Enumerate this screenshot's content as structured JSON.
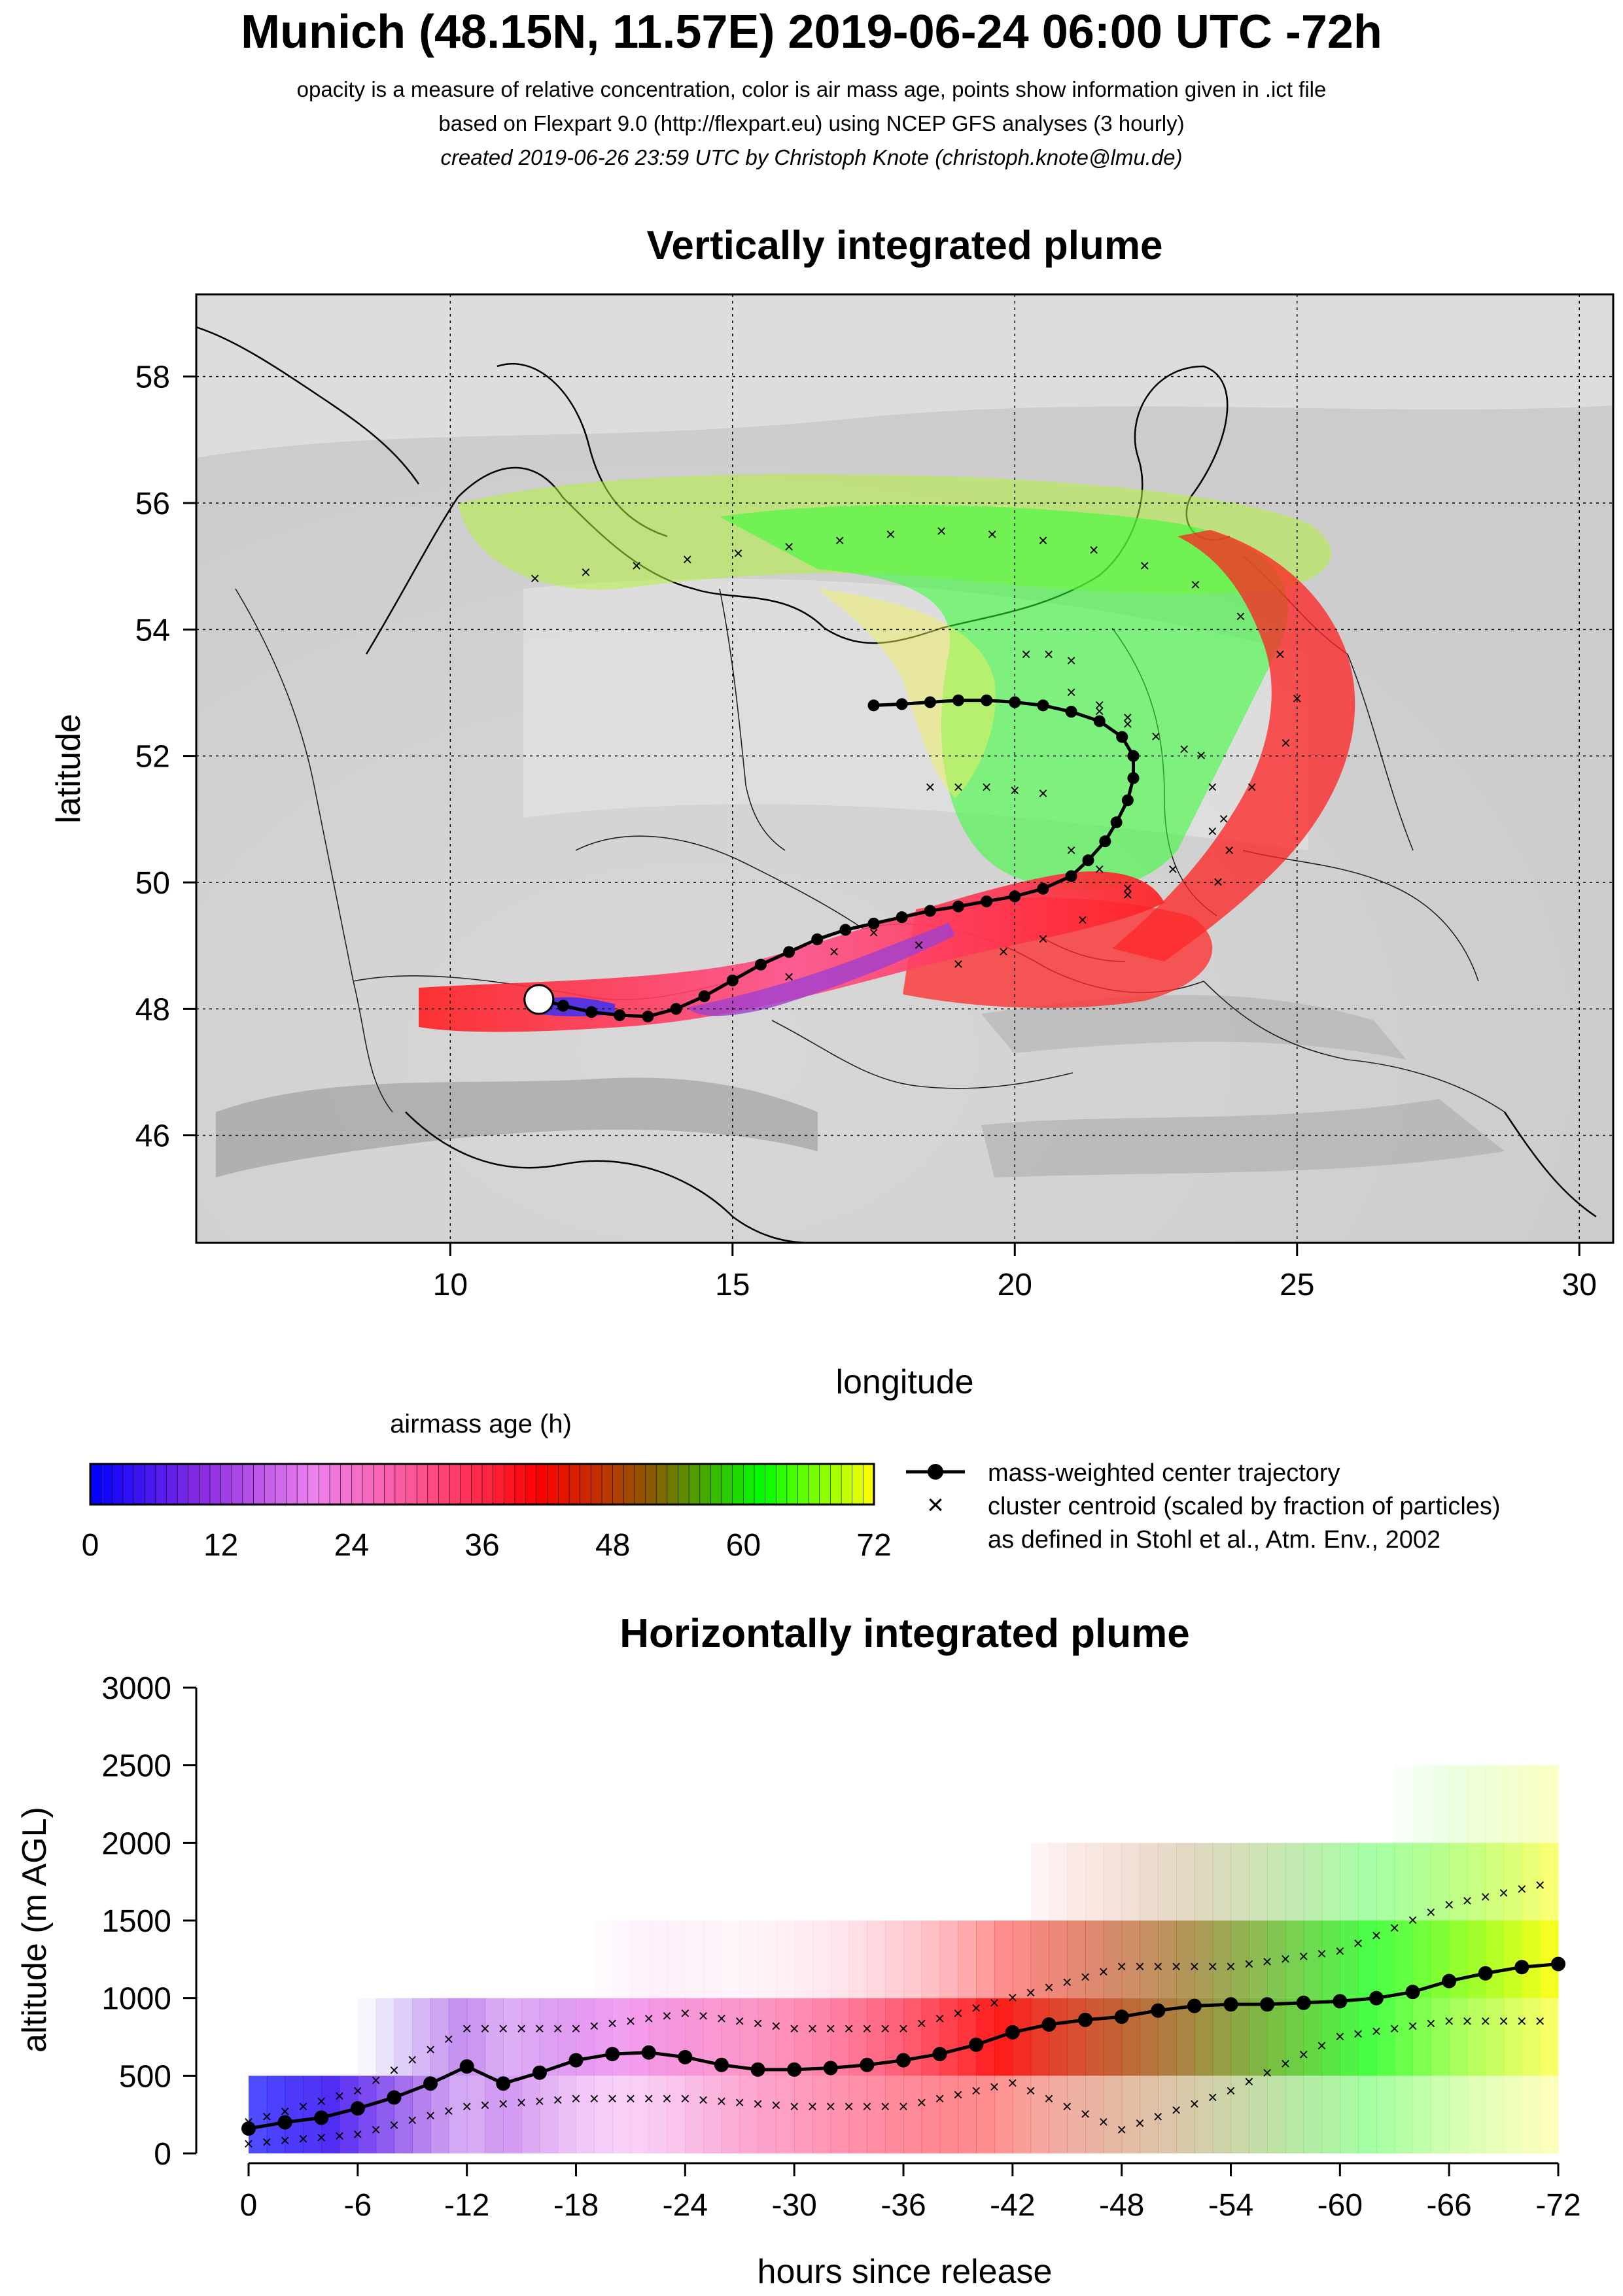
{
  "header": {
    "title": "Munich (48.15N, 11.57E) 2019-06-24 06:00 UTC -72h",
    "subtitle1": "opacity is a measure of relative concentration, color is air mass age, points show information given in .ict file",
    "subtitle2": "based on Flexpart 9.0 (http://flexpart.eu) using NCEP GFS analyses (3 hourly)",
    "subtitle3": "created 2019-06-26 23:59 UTC by Christoph Knote (christoph.knote@lmu.de)"
  },
  "colors": {
    "age_scale": [
      "#0000ff",
      "#8a2be2",
      "#ee82ee",
      "#ff4f8b",
      "#ff0000",
      "#8b5a00",
      "#00ff00",
      "#ffff00"
    ],
    "trajectory": "#000000",
    "map_background": "#cfcfcf"
  },
  "legend": {
    "colorbar_title": "airmass age (h)",
    "colorbar_ticks": [
      "0",
      "12",
      "24",
      "36",
      "48",
      "60",
      "72"
    ],
    "trajectory_label": "mass-weighted center trajectory",
    "cluster_label": "cluster centroid (scaled by fraction of particles)",
    "cluster_ref": "as defined in Stohl et al., Atm. Env., 2002"
  },
  "chart_data": [
    {
      "type": "scatter",
      "title": "Vertically integrated plume",
      "xlabel": "longitude",
      "ylabel": "latitude",
      "xlim": [
        5.5,
        30.6
      ],
      "ylim": [
        44.3,
        59.3
      ],
      "xticks": [
        10,
        15,
        20,
        25,
        30
      ],
      "yticks": [
        46,
        48,
        50,
        52,
        54,
        56,
        58
      ],
      "grid": true,
      "release_point": {
        "lon": 11.57,
        "lat": 48.15
      },
      "center_trajectory": {
        "lon": [
          11.6,
          12.0,
          12.5,
          13.0,
          13.5,
          14.0,
          14.5,
          15.0,
          15.5,
          16.0,
          16.5,
          17.0,
          17.5,
          18.0,
          18.5,
          19.0,
          19.5,
          20.0,
          20.5,
          21.0,
          21.3,
          21.6,
          21.8,
          22.0,
          22.1,
          22.1,
          21.9,
          21.5,
          21.0,
          20.5,
          20.0,
          19.5,
          19.0,
          18.5,
          18.0,
          17.5
        ],
        "lat": [
          48.15,
          48.05,
          47.95,
          47.9,
          47.88,
          48.0,
          48.2,
          48.45,
          48.7,
          48.9,
          49.1,
          49.25,
          49.35,
          49.45,
          49.55,
          49.62,
          49.7,
          49.78,
          49.9,
          50.1,
          50.35,
          50.65,
          50.95,
          51.3,
          51.65,
          52.0,
          52.3,
          52.55,
          52.7,
          52.8,
          52.85,
          52.88,
          52.88,
          52.85,
          52.82,
          52.8
        ]
      },
      "cluster_centroids": {
        "lon": [
          16.0,
          16.8,
          17.5,
          18.3,
          19.0,
          19.8,
          20.5,
          21.2,
          22.0,
          22.8,
          23.5,
          24.2,
          24.8,
          25.0,
          24.7,
          24.0,
          23.2,
          22.3,
          21.4,
          20.5,
          19.6,
          18.7,
          17.8,
          16.9,
          16.0,
          15.1,
          14.2,
          13.3,
          12.4,
          11.5,
          20.2,
          20.6,
          21.0,
          21.5,
          22.0,
          22.5,
          23.0,
          18.5,
          19.0,
          19.5,
          20.0,
          20.5,
          21.0,
          21.5,
          22.0,
          23.3,
          23.5,
          23.7,
          23.8,
          23.6,
          21.0,
          21.5,
          22.0
        ],
        "lat": [
          48.5,
          48.9,
          49.2,
          49.0,
          48.7,
          48.9,
          49.1,
          49.4,
          49.8,
          50.2,
          50.8,
          51.5,
          52.2,
          52.9,
          53.6,
          54.2,
          54.7,
          55.0,
          55.25,
          55.4,
          55.5,
          55.55,
          55.5,
          55.4,
          55.3,
          55.2,
          55.1,
          55.0,
          54.9,
          54.8,
          53.6,
          53.6,
          53.5,
          52.7,
          52.5,
          52.3,
          52.1,
          51.5,
          51.5,
          51.5,
          51.45,
          51.4,
          50.5,
          50.2,
          49.9,
          52.0,
          51.5,
          51.0,
          50.5,
          50.0,
          53.0,
          52.8,
          52.6
        ]
      }
    },
    {
      "type": "line",
      "title": "Horizontally integrated plume",
      "xlabel": "hours since release",
      "ylabel": "altitude (m AGL)",
      "xlim": [
        0,
        -72
      ],
      "ylim": [
        0,
        3000
      ],
      "xtick_labels": [
        "0",
        "-6",
        "-12",
        "-18",
        "-24",
        "-30",
        "-36",
        "-42",
        "-48",
        "-54",
        "-60",
        "-66",
        "-72"
      ],
      "ytick_labels": [
        "0",
        "500",
        "1000",
        "1500",
        "2000",
        "2500",
        "3000"
      ],
      "series": [
        {
          "x": [
            0,
            -2,
            -4,
            -6,
            -8,
            -10,
            -12,
            -14,
            -16,
            -18,
            -20,
            -22,
            -24,
            -26,
            -28,
            -30,
            -32,
            -34,
            -36,
            -38,
            -40,
            -42,
            -44,
            -46,
            -48,
            -50,
            -52,
            -54,
            -56,
            -58,
            -60,
            -62,
            -64,
            -66,
            -68,
            -70,
            -72
          ],
          "y": [
            160,
            200,
            230,
            290,
            360,
            450,
            560,
            450,
            520,
            600,
            640,
            650,
            620,
            570,
            540,
            540,
            550,
            570,
            600,
            640,
            700,
            780,
            830,
            860,
            880,
            920,
            950,
            960,
            960,
            970,
            980,
            1000,
            1040,
            1110,
            1160,
            1200,
            1220
          ]
        }
      ],
      "cluster_spread_upper": {
        "x": [
          0,
          -6,
          -12,
          -18,
          -24,
          -30,
          -36,
          -42,
          -48,
          -54,
          -60,
          -66,
          -72
        ],
        "y": [
          200,
          400,
          800,
          800,
          900,
          800,
          800,
          1000,
          1200,
          1200,
          1300,
          1600,
          1750
        ]
      },
      "cluster_spread_lower": {
        "x": [
          0,
          -6,
          -12,
          -18,
          -24,
          -30,
          -36,
          -42,
          -48,
          -54,
          -60,
          -66,
          -72
        ],
        "y": [
          60,
          120,
          300,
          350,
          350,
          300,
          300,
          450,
          150,
          400,
          750,
          850,
          850
        ]
      }
    }
  ]
}
